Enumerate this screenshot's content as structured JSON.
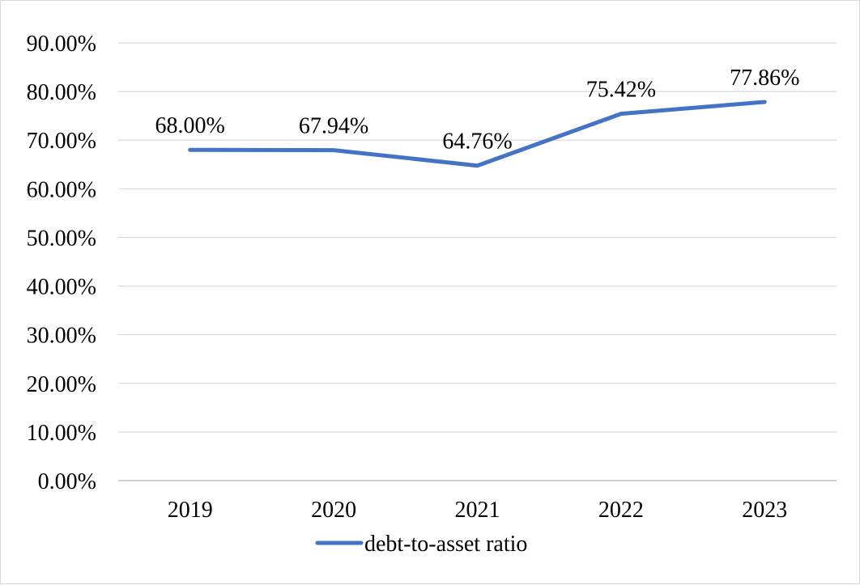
{
  "chart_data": {
    "type": "line",
    "categories": [
      "2019",
      "2020",
      "2021",
      "2022",
      "2023"
    ],
    "series": [
      {
        "name": "debt-to-asset ratio",
        "values": [
          68.0,
          67.94,
          64.76,
          75.42,
          77.86
        ],
        "labels": [
          "68.00%",
          "67.94%",
          "64.76%",
          "75.42%",
          "77.86%"
        ],
        "color": "#4472C4"
      }
    ],
    "y_ticks": [
      "0.00%",
      "10.00%",
      "20.00%",
      "30.00%",
      "40.00%",
      "50.00%",
      "60.00%",
      "70.00%",
      "80.00%",
      "90.00%"
    ],
    "ylim": [
      0,
      90
    ],
    "grid": true,
    "legend_position": "bottom",
    "gridline_color": "#d9d9d9",
    "axis_color": "#bfbfbf"
  }
}
